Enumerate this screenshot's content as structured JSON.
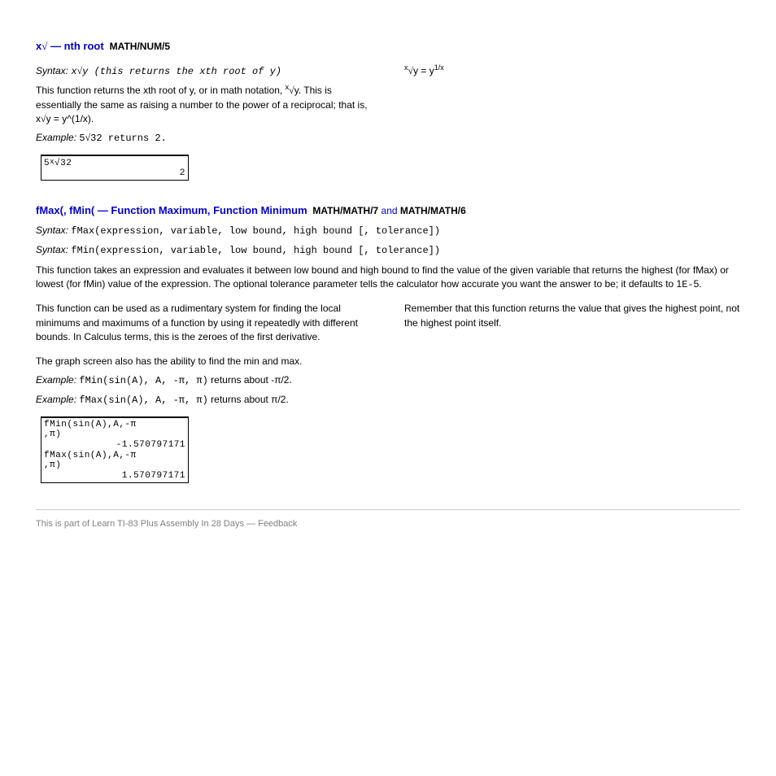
{
  "func1": {
    "title_pre": "x",
    "title_sym": "√",
    "title_post": " — nth root",
    "menu": "MATH/NUM/5",
    "syntax_label": "Syntax:",
    "syntax_pre": "x",
    "syntax_sym": "√",
    "syntax_post": "y (this returns the xth root of y)",
    "desc": "This function returns the xth root of y, or in math notation, ",
    "desc_math_pre": "x",
    "desc_math_sym": "√",
    "desc_math_post": "y",
    "desc2": ". This is essentially the same as raising a number to the power of a reciprocal; that is, x",
    "desc2_sym": "√",
    "desc2_post": "y = y^(1/x).",
    "ex_label": "Example:",
    "ex_pre": "5",
    "ex_sym": "√",
    "ex_post": "32 returns 2.",
    "screen_l1": "5<span>*</span>√32",
    "screen_l2": "2"
  },
  "func2": {
    "title": "fMax(, fMin( — Function Maximum, Function Minimum",
    "menu_pre": "MATH/MATH/7",
    "menu_mid": " and ",
    "menu_post": "MATH/MATH/6",
    "syntax_label": "Syntax:",
    "syntax_a": "fMax(expression, variable, low bound, high bound [, tolerance])",
    "syntax_b": "fMin(expression, variable, low bound, high bound [, tolerance])",
    "desc1": "This function takes an expression and evaluates it between low bound and high bound to find the value of the given variable that returns the highest (for fMax) or lowest (for fMin) value of the expression. The optional tolerance parameter tells the calculator how accurate you want the answer to be; it defaults to 1",
    "desc1_exp": "E-",
    "desc1_post": "5.",
    "desc2a": "This function can be used as a rudimentary system for finding the local minimums and maximums of a function by using it repeatedly with different bounds. In Calculus terms, this is the zeroes of the first derivative.",
    "desc2b": "Remember that this function returns the value that gives the highest point, not the highest point itself.",
    "desc3": "The graph screen also has the ability to find the min and max.",
    "ex_label": "Example:",
    "ex_minpre": "fMin(sin(A), A, ",
    "ex_neg": "-",
    "ex_pi": "π",
    "ex_end": ")",
    "ex_mintxt": " returns about -π/2.",
    "ex_maxpre": "fMax(sin(A), A, ",
    "ex_maxtxt": " returns about π/2.",
    "screen_l1": "fMin(sin(A),A,‑π",
    "screen_l2": ",π)",
    "screen_l3": "‑1.570797171",
    "screen_l4": "fMax(sin(A),A,‑π",
    "screen_l5": ",π)",
    "screen_l6": "1.570797171"
  },
  "footer": {
    "text1": "This is part of ",
    "link1": "Learn TI-83 Plus Assembly In 28 Days",
    "mdash": " — ",
    "link2": "Feedback"
  }
}
